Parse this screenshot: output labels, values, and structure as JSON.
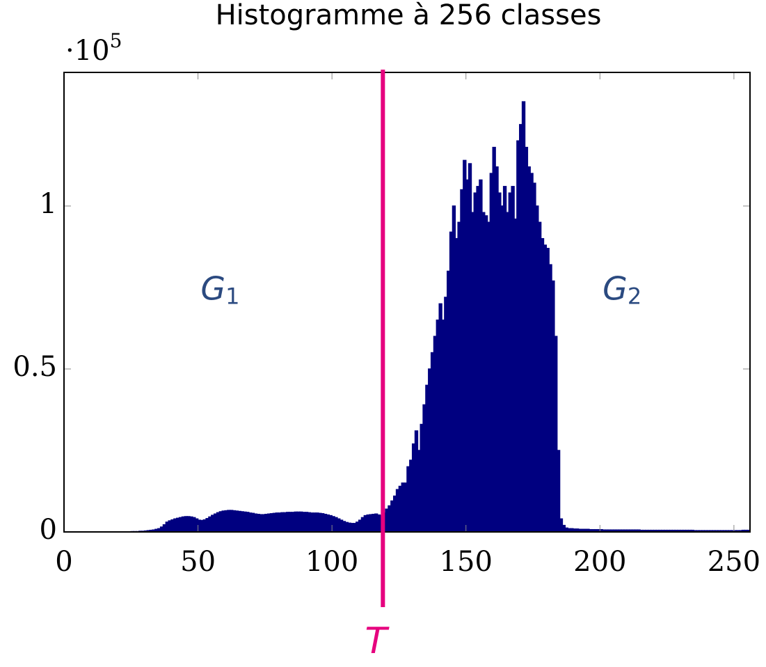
{
  "chart_data": {
    "type": "histogram",
    "title": "Histogramme à 256 classes",
    "y_multiplier": {
      "base": "·10",
      "exponent": "5"
    },
    "color": "#000080",
    "bins": [
      0,
      1,
      2,
      3,
      4,
      5,
      6,
      7,
      8,
      9,
      10,
      11,
      12,
      13,
      14,
      15,
      16,
      17,
      18,
      19,
      20,
      21,
      22,
      23,
      24,
      25,
      26,
      27,
      28,
      29,
      30,
      31,
      32,
      33,
      34,
      35,
      36,
      37,
      38,
      39,
      40,
      41,
      42,
      43,
      44,
      45,
      46,
      47,
      48,
      49,
      50,
      51,
      52,
      53,
      54,
      55,
      56,
      57,
      58,
      59,
      60,
      61,
      62,
      63,
      64,
      65,
      66,
      67,
      68,
      69,
      70,
      71,
      72,
      73,
      74,
      75,
      76,
      77,
      78,
      79,
      80,
      81,
      82,
      83,
      84,
      85,
      86,
      87,
      88,
      89,
      90,
      91,
      92,
      93,
      94,
      95,
      96,
      97,
      98,
      99,
      100,
      101,
      102,
      103,
      104,
      105,
      106,
      107,
      108,
      109,
      110,
      111,
      112,
      113,
      114,
      115,
      116,
      117,
      118,
      119,
      120,
      121,
      122,
      123,
      124,
      125,
      126,
      127,
      128,
      129,
      130,
      131,
      132,
      133,
      134,
      135,
      136,
      137,
      138,
      139,
      140,
      141,
      142,
      143,
      144,
      145,
      146,
      147,
      148,
      149,
      150,
      151,
      152,
      153,
      154,
      155,
      156,
      157,
      158,
      159,
      160,
      161,
      162,
      163,
      164,
      165,
      166,
      167,
      168,
      169,
      170,
      171,
      172,
      173,
      174,
      175,
      176,
      177,
      178,
      179,
      180,
      181,
      182,
      183,
      184,
      185,
      186,
      187,
      188,
      189,
      190,
      191,
      192,
      193,
      194,
      195,
      196,
      197,
      198,
      199,
      200,
      201,
      202,
      203,
      204,
      205,
      206,
      207,
      208,
      209,
      210,
      211,
      212,
      213,
      214,
      215,
      216,
      217,
      218,
      219,
      220,
      221,
      222,
      223,
      224,
      225,
      226,
      227,
      228,
      229,
      230,
      231,
      232,
      233,
      234,
      235,
      236,
      237,
      238,
      239,
      240,
      241,
      242,
      243,
      244,
      245,
      246,
      247,
      248,
      249,
      250,
      251,
      252,
      253,
      254,
      255,
      256
    ],
    "values": [
      0,
      0,
      0,
      0,
      0,
      0,
      0,
      0,
      0,
      0,
      0,
      0,
      0,
      0,
      0,
      0,
      0,
      0,
      0,
      0,
      0,
      0,
      0,
      0,
      0,
      0.001,
      0.001,
      0.001,
      0.002,
      0.002,
      0.003,
      0.004,
      0.005,
      0.006,
      0.008,
      0.01,
      0.015,
      0.022,
      0.03,
      0.034,
      0.037,
      0.04,
      0.042,
      0.044,
      0.046,
      0.047,
      0.047,
      0.046,
      0.044,
      0.04,
      0.036,
      0.035,
      0.037,
      0.041,
      0.046,
      0.051,
      0.055,
      0.059,
      0.062,
      0.064,
      0.065,
      0.066,
      0.066,
      0.065,
      0.064,
      0.063,
      0.062,
      0.061,
      0.06,
      0.058,
      0.057,
      0.055,
      0.054,
      0.053,
      0.053,
      0.054,
      0.055,
      0.056,
      0.057,
      0.058,
      0.058,
      0.059,
      0.059,
      0.06,
      0.06,
      0.06,
      0.061,
      0.061,
      0.061,
      0.06,
      0.06,
      0.059,
      0.058,
      0.058,
      0.058,
      0.057,
      0.056,
      0.054,
      0.052,
      0.05,
      0.047,
      0.044,
      0.04,
      0.036,
      0.032,
      0.029,
      0.027,
      0.026,
      0.026,
      0.03,
      0.036,
      0.044,
      0.05,
      0.052,
      0.053,
      0.054,
      0.055,
      0.052,
      0.05,
      0.058,
      0.07,
      0.08,
      0.095,
      0.11,
      0.13,
      0.14,
      0.15,
      0.15,
      0.2,
      0.22,
      0.27,
      0.31,
      0.25,
      0.33,
      0.39,
      0.45,
      0.5,
      0.55,
      0.6,
      0.65,
      0.7,
      0.65,
      0.72,
      0.8,
      0.92,
      1.0,
      0.9,
      0.95,
      1.05,
      1.14,
      1.08,
      1.13,
      0.98,
      1.04,
      1.06,
      1.08,
      0.98,
      0.97,
      0.95,
      1.1,
      1.18,
      1.12,
      1.04,
      1.0,
      1.06,
      0.98,
      1.04,
      1.06,
      0.96,
      1.2,
      1.25,
      1.32,
      1.18,
      1.12,
      1.1,
      1.07,
      1.0,
      0.95,
      0.9,
      0.88,
      0.87,
      0.82,
      0.77,
      0.6,
      0.25,
      0.04,
      0.02,
      0.012,
      0.01,
      0.01,
      0.009,
      0.009,
      0.008,
      0.008,
      0.008,
      0.008,
      0.007,
      0.007,
      0.007,
      0.007,
      0.007,
      0.006,
      0.006,
      0.006,
      0.006,
      0.006,
      0.006,
      0.006,
      0.006,
      0.006,
      0.006,
      0.006,
      0.006,
      0.006,
      0.006,
      0.005,
      0.005,
      0.005,
      0.005,
      0.005,
      0.005,
      0.005,
      0.005,
      0.005,
      0.005,
      0.005,
      0.005,
      0.005,
      0.005,
      0.005,
      0.005,
      0.005,
      0.005,
      0.005,
      0.005,
      0.004,
      0.004,
      0.004,
      0.004,
      0.004,
      0.004,
      0.004,
      0.004,
      0.004,
      0.004,
      0.004,
      0.004,
      0.004,
      0.004,
      0.004,
      0.004,
      0.004,
      0.004,
      0.005,
      0.005,
      0.005
    ],
    "xlim": [
      0,
      256
    ],
    "xticks": [
      0,
      50,
      100,
      150,
      200,
      250
    ],
    "ylim": [
      0,
      1.41
    ],
    "yticks": [
      0,
      0.5,
      1
    ],
    "threshold": {
      "x": 119,
      "label": "T",
      "color": "#e6007e"
    },
    "annotations": [
      {
        "text": "G",
        "sub": "1",
        "color": "#2b4a80"
      },
      {
        "text": "G",
        "sub": "2",
        "color": "#2b4a80"
      }
    ]
  }
}
